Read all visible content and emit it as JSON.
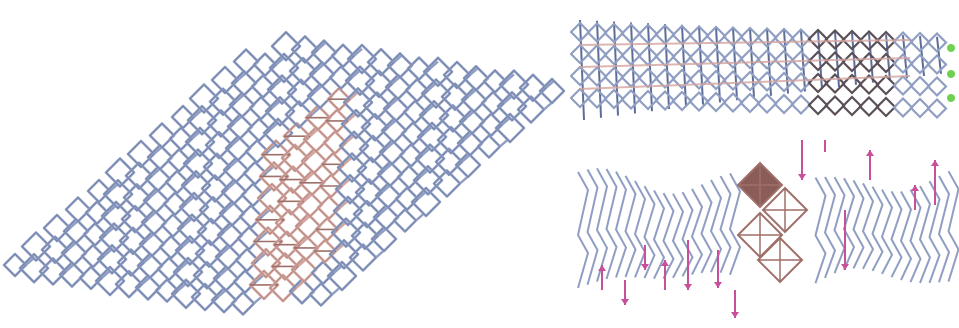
{
  "figure": {
    "panels": [
      {
        "id": "perspective-lattice",
        "view": "oblique"
      },
      {
        "id": "side-lattice-top",
        "view": "side"
      },
      {
        "id": "side-lattice-bottom",
        "view": "side-rotated"
      }
    ]
  },
  "colors": {
    "framework": "#8f9ec2",
    "framework_dark": "#5d6d99",
    "highlight": "#d3a59f",
    "highlight_dark": "#9f6f69",
    "octahedron": "#8a5d58",
    "arrow": "#c8509b",
    "dot": "#6fd051"
  }
}
